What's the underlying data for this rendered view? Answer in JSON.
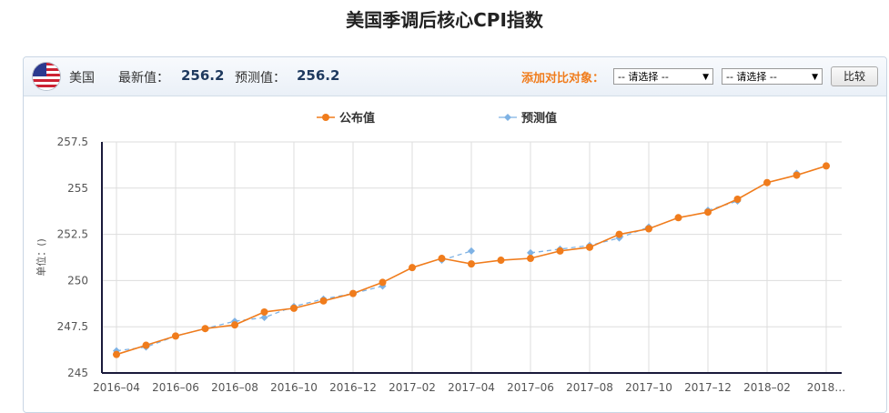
{
  "page": {
    "title": "美国季调后核心CPI指数"
  },
  "header": {
    "country": "美国",
    "latest_label": "最新值：",
    "latest_value": "256.2",
    "forecast_label": "预测值：",
    "forecast_value": "256.2",
    "compare_label": "添加对比对象：",
    "select1": "-- 请选择 --",
    "select2": "-- 请选择 --",
    "compare_button": "比较",
    "flag_icon": "us-flag-icon"
  },
  "colors": {
    "published": "#f07c1c",
    "forecast": "#7eb2e4",
    "axis": "#1a1a3a",
    "grid": "#dddddd"
  },
  "chart_data": {
    "type": "line",
    "title": "",
    "ylabel": "单位：()",
    "ylim": [
      245,
      257.5
    ],
    "yticks": [
      245,
      247.5,
      250,
      252.5,
      255,
      257.5
    ],
    "ytick_labels": [
      "245",
      "247.5",
      "250",
      "252.5",
      "255",
      "257.5"
    ],
    "categories": [
      "2016-04",
      "2016-05",
      "2016-06",
      "2016-07",
      "2016-08",
      "2016-09",
      "2016-10",
      "2016-11",
      "2016-12",
      "2017-01",
      "2017-02",
      "2017-03",
      "2017-04",
      "2017-05",
      "2017-06",
      "2017-07",
      "2017-08",
      "2017-09",
      "2017-10",
      "2017-11",
      "2017-12",
      "2018-01",
      "2018-02",
      "2018-03",
      "2018-04"
    ],
    "xtick_labels": [
      "2016–04",
      "2016–06",
      "2016–08",
      "2016–10",
      "2016–12",
      "2017–02",
      "2017–04",
      "2017–06",
      "2017–08",
      "2017–10",
      "2017–12",
      "2018–02",
      "2018…"
    ],
    "legend": {
      "placement": "top",
      "entries": [
        "公布值",
        "预测值"
      ]
    },
    "series": [
      {
        "name": "公布值",
        "values": [
          246.0,
          246.5,
          247.0,
          247.4,
          247.6,
          248.3,
          248.5,
          248.9,
          249.3,
          249.9,
          250.7,
          251.2,
          250.9,
          251.1,
          251.2,
          251.6,
          251.8,
          252.5,
          252.8,
          253.4,
          253.7,
          254.4,
          255.3,
          255.7,
          256.2
        ]
      },
      {
        "name": "预测值",
        "values": [
          246.2,
          246.4,
          247.0,
          247.4,
          247.8,
          248.0,
          248.6,
          249.0,
          249.3,
          249.7,
          null,
          251.1,
          251.6,
          null,
          251.5,
          251.7,
          251.9,
          252.3,
          252.9,
          null,
          253.8,
          254.3,
          null,
          255.8,
          null
        ]
      }
    ],
    "grid": true
  }
}
